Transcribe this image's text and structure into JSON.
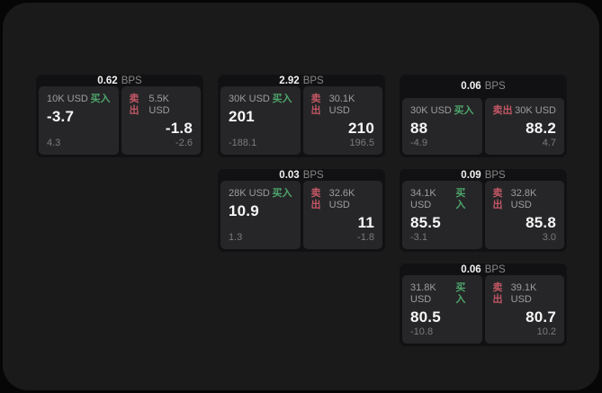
{
  "labels": {
    "bps_unit": "BPS",
    "buy": "买入",
    "sell": "卖出"
  },
  "colors": {
    "buy_green": "#4ea56b",
    "sell_red": "#c25764",
    "panel_bg": "#1a1a1b",
    "card_bg": "#111113",
    "tile_bg": "#262628"
  },
  "cards": [
    {
      "spread": "0.62",
      "buy": {
        "size": "10K USD",
        "price": "-3.7",
        "delta": "4.3"
      },
      "sell": {
        "size": "5.5K USD",
        "price": "-1.8",
        "delta": "-2.6"
      }
    },
    {
      "spread": "2.92",
      "buy": {
        "size": "30K USD",
        "price": "201",
        "delta": "-188.1"
      },
      "sell": {
        "size": "30.1K USD",
        "price": "210",
        "delta": "196.5"
      }
    },
    {
      "spread": "0.06",
      "buy": {
        "size": "30K USD",
        "price": "88",
        "delta": "-4.9"
      },
      "sell": {
        "size": "30K USD",
        "price": "88.2",
        "delta": "4.7"
      }
    },
    {
      "spread": "0.03",
      "buy": {
        "size": "28K USD",
        "price": "10.9",
        "delta": "1.3"
      },
      "sell": {
        "size": "32.6K USD",
        "price": "11",
        "delta": "-1.8"
      }
    },
    {
      "spread": "0.09",
      "buy": {
        "size": "34.1K USD",
        "price": "85.5",
        "delta": "-3.1"
      },
      "sell": {
        "size": "32.8K USD",
        "price": "85.8",
        "delta": "3.0"
      }
    },
    {
      "spread": "0.06",
      "buy": {
        "size": "31.8K USD",
        "price": "80.5",
        "delta": "-10.8"
      },
      "sell": {
        "size": "39.1K USD",
        "price": "80.7",
        "delta": "10.2"
      }
    }
  ]
}
